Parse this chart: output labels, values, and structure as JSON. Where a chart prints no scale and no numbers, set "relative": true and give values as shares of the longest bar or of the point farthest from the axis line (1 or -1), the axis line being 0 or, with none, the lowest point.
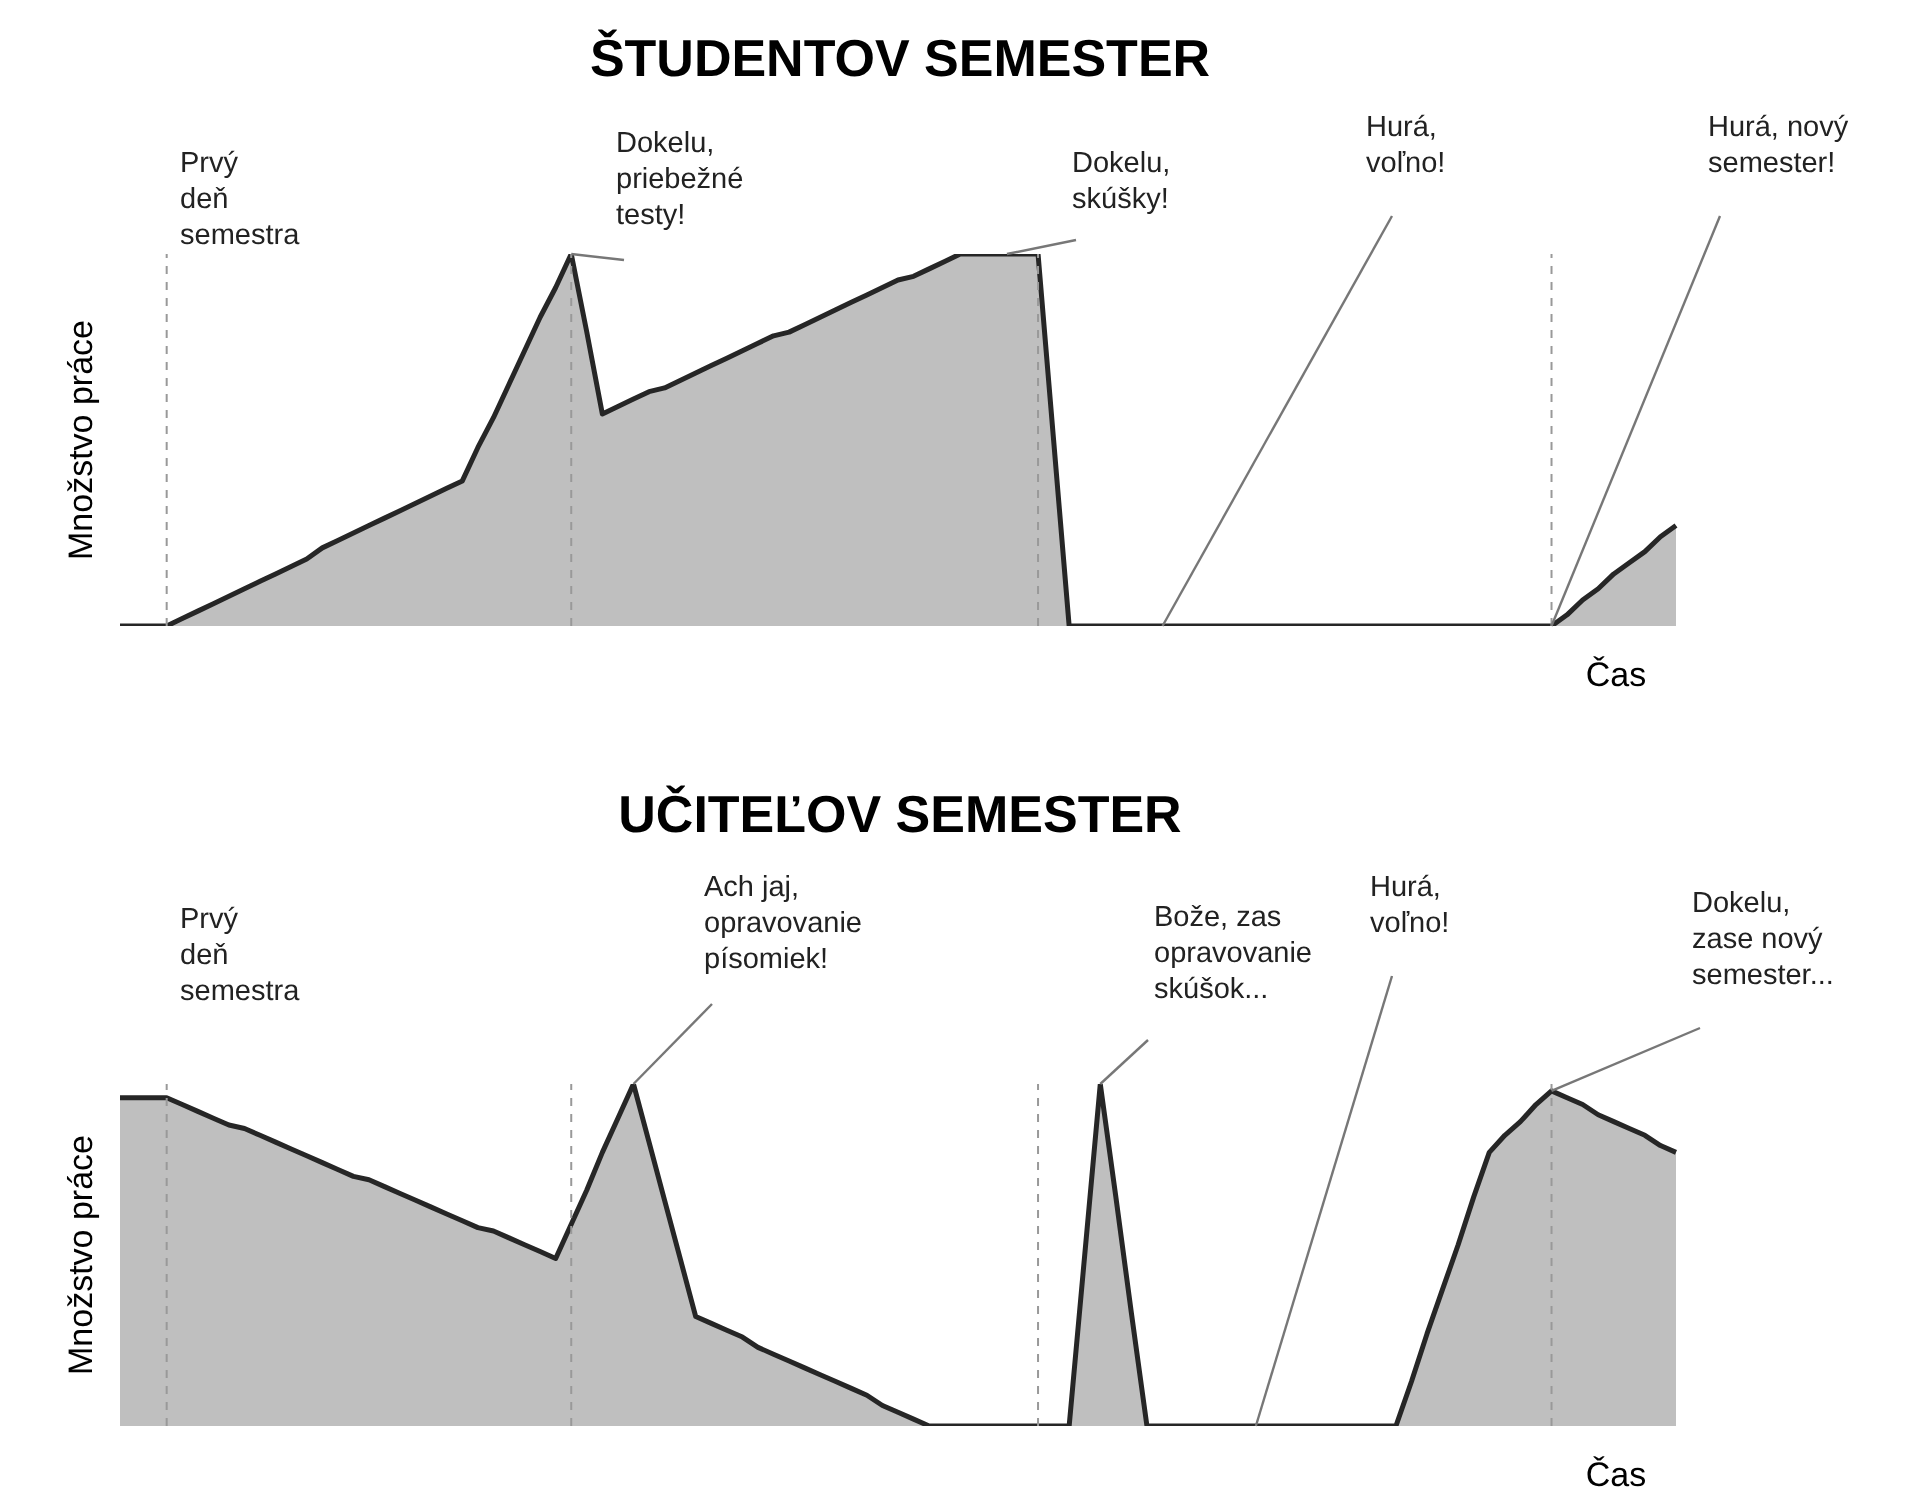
{
  "chart_data": [
    {
      "type": "area",
      "title": "ŠTUDENTOV SEMESTER",
      "xlabel": "Čas",
      "ylabel": "Množstvo práce",
      "relative": true,
      "grid": "x",
      "categories": [
        null,
        null,
        null,
        null,
        null,
        null,
        null,
        null,
        null,
        null,
        null,
        null,
        null,
        null,
        null,
        null,
        null,
        null,
        null,
        null,
        null,
        null,
        null,
        null,
        null,
        null,
        null,
        null,
        null,
        null,
        null,
        null,
        null,
        null,
        null,
        null,
        null,
        null,
        null,
        null,
        null,
        null,
        null,
        null,
        null,
        null,
        null,
        null,
        null,
        null,
        null,
        null,
        null,
        null,
        null,
        null,
        null,
        null,
        null,
        null,
        null,
        null,
        null,
        null,
        null,
        null,
        null,
        null,
        null,
        null,
        null,
        null,
        null,
        null,
        null,
        null,
        null,
        null,
        null,
        null,
        null,
        null,
        null,
        null,
        null,
        null,
        null,
        null,
        null,
        null,
        null,
        null,
        null,
        null,
        null,
        null,
        null,
        null,
        null,
        null,
        null
      ],
      "values": [
        0,
        0,
        0,
        0,
        0.02,
        0.04,
        0.06,
        0.08,
        0.1,
        0.12,
        0.14,
        0.16,
        0.18,
        0.21,
        0.23,
        0.25,
        0.27,
        0.29,
        0.31,
        0.33,
        0.35,
        0.37,
        0.39,
        0.48,
        0.56,
        0.65,
        0.74,
        0.83,
        0.91,
        1,
        0.79,
        0.57,
        0.59,
        0.61,
        0.63,
        0.64,
        0.66,
        0.68,
        0.7,
        0.72,
        0.74,
        0.76,
        0.78,
        0.79,
        0.81,
        0.83,
        0.85,
        0.87,
        0.89,
        0.91,
        0.93,
        0.94,
        0.96,
        0.98,
        1,
        1,
        1,
        1,
        1,
        1,
        0.5,
        0,
        0,
        0,
        0,
        0,
        0,
        0,
        0,
        0,
        0,
        0,
        0,
        0,
        0,
        0,
        0,
        0,
        0,
        0,
        0,
        0,
        0,
        0,
        0,
        0,
        0,
        0,
        0,
        0,
        0,
        0,
        0,
        0.03,
        0.07,
        0.1,
        0.14,
        0.17,
        0.2,
        0.24,
        0.27
      ],
      "color": "#bfbfbf",
      "annotations": [
        "Prvý\ndeň\nsemestra",
        "Dokelu,\npriebežné\ntesty!",
        "Dokelu,\nskúšky!",
        "Hurá,\nvoľno!",
        "Hurá, nový\nsemester!"
      ]
    },
    {
      "type": "area",
      "title": "UČITEĽOV SEMESTER",
      "xlabel": "Čas",
      "ylabel": "Množstvo práce",
      "relative": true,
      "grid": "x",
      "categories": [
        null,
        null,
        null,
        null,
        null,
        null,
        null,
        null,
        null,
        null,
        null,
        null,
        null,
        null,
        null,
        null,
        null,
        null,
        null,
        null,
        null,
        null,
        null,
        null,
        null,
        null,
        null,
        null,
        null,
        null,
        null,
        null,
        null,
        null,
        null,
        null,
        null,
        null,
        null,
        null,
        null,
        null,
        null,
        null,
        null,
        null,
        null,
        null,
        null,
        null,
        null,
        null,
        null,
        null,
        null,
        null,
        null,
        null,
        null,
        null,
        null,
        null,
        null,
        null,
        null,
        null,
        null,
        null,
        null,
        null,
        null,
        null,
        null,
        null,
        null,
        null,
        null,
        null,
        null,
        null,
        null,
        null,
        null,
        null,
        null,
        null,
        null,
        null,
        null,
        null,
        null,
        null,
        null,
        null,
        null,
        null,
        null,
        null,
        null,
        null,
        null
      ],
      "values": [
        0.96,
        0.96,
        0.96,
        0.96,
        0.94,
        0.92,
        0.9,
        0.88,
        0.87,
        0.85,
        0.83,
        0.81,
        0.79,
        0.77,
        0.75,
        0.73,
        0.72,
        0.7,
        0.68,
        0.66,
        0.64,
        0.62,
        0.6,
        0.58,
        0.57,
        0.55,
        0.53,
        0.51,
        0.49,
        0.59,
        0.69,
        0.8,
        0.9,
        1,
        0.83,
        0.66,
        0.49,
        0.32,
        0.3,
        0.28,
        0.26,
        0.23,
        0.21,
        0.19,
        0.17,
        0.15,
        0.13,
        0.11,
        0.09,
        0.06,
        0.04,
        0.02,
        0,
        0,
        0,
        0,
        0,
        0,
        0,
        0,
        0,
        0,
        0.5,
        1,
        0.67,
        0.33,
        0,
        0,
        0,
        0,
        0,
        0,
        0,
        0,
        0,
        0,
        0,
        0,
        0,
        0,
        0,
        0,
        0,
        0.13,
        0.27,
        0.4,
        0.53,
        0.67,
        0.8,
        0.85,
        0.89,
        0.94,
        0.98,
        0.96,
        0.94,
        0.91,
        0.89,
        0.87,
        0.85,
        0.82,
        0.8
      ],
      "color": "#bfbfbf",
      "annotations": [
        "Prvý\ndeň\nsemestra",
        "Ach jaj,\nopravovanie\npísomiek!",
        "Bože, zas\nopravovanie\nskúšok...",
        "Hurá,\nvoľno!",
        "Dokelu,\nzase nový\nsemester..."
      ]
    }
  ]
}
